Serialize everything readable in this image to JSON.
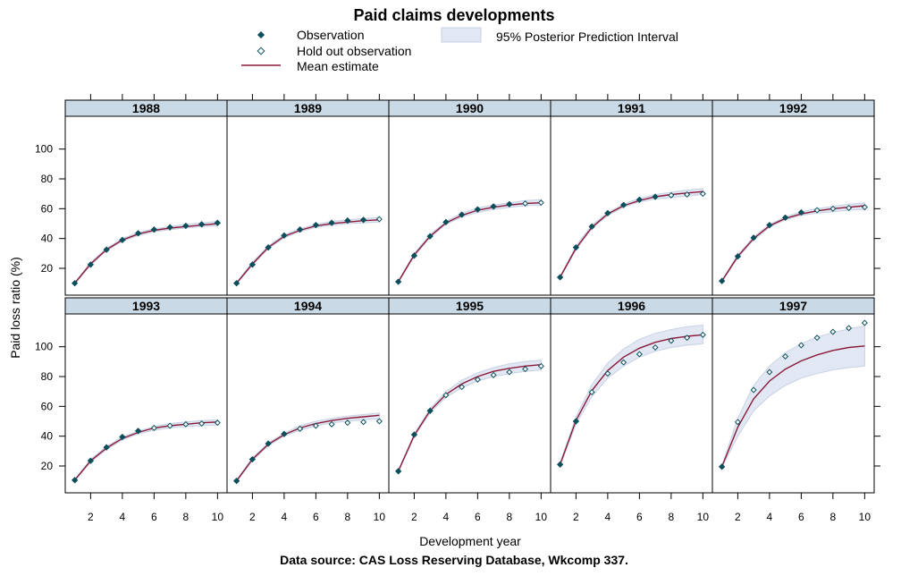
{
  "chart_data": {
    "type": "scatter",
    "title": "Paid claims developments",
    "xlabel": "Development year",
    "ylabel": "Paid loss ratio (%)",
    "source": "Data source: CAS Loss Reserving Database, Wkcomp 337.",
    "legend": {
      "placement": "top",
      "observation": "Observation",
      "holdout": "Hold out observation",
      "mean": "Mean estimate",
      "interval": "95% Posterior Prediction Interval"
    },
    "xlim": [
      0.4,
      10.6
    ],
    "ylim": [
      2,
      122
    ],
    "x_ticks": [
      2,
      4,
      6,
      8,
      10
    ],
    "y_ticks": [
      20,
      40,
      60,
      80,
      100
    ],
    "x_tick_labels": [
      "2",
      "4",
      "6",
      "8",
      "10"
    ],
    "y_tick_labels": [
      "20",
      "40",
      "60",
      "80",
      "100"
    ],
    "colors": {
      "observation": "#0b4f5c",
      "mean": "#8b1a3a",
      "interval": "#dfe6f2",
      "strip": "#c9dae6"
    },
    "x": [
      1,
      2,
      3,
      4,
      5,
      6,
      7,
      8,
      9,
      10
    ],
    "panels": [
      {
        "label": "1988",
        "n_obs": 10,
        "values": [
          10,
          22.5,
          32.5,
          39,
          43.5,
          46,
          47.5,
          48.5,
          49.5,
          50.5
        ],
        "mean": [
          10,
          23,
          32.5,
          39,
          43,
          45.5,
          47,
          48,
          49,
          50
        ],
        "lower": [
          9.5,
          22,
          32,
          38,
          42,
          44.5,
          46,
          47,
          48,
          48.5
        ],
        "upper": [
          10.5,
          24,
          33.5,
          40,
          44,
          46.5,
          48,
          49.5,
          50.5,
          51.5
        ]
      },
      {
        "label": "1989",
        "n_obs": 9,
        "values": [
          10,
          22.5,
          34,
          42,
          46,
          49,
          50.5,
          52,
          52.5,
          53
        ],
        "mean": [
          10,
          23,
          34,
          41.5,
          45.5,
          48.5,
          50,
          51,
          52,
          52.5
        ],
        "lower": [
          9.5,
          22,
          33,
          40.5,
          44.5,
          47.5,
          49,
          50,
          50.5,
          51
        ],
        "upper": [
          10.5,
          24,
          35,
          42.5,
          46.5,
          49.5,
          51.5,
          52.5,
          53.5,
          54
        ]
      },
      {
        "label": "1990",
        "n_obs": 8,
        "values": [
          11,
          28.5,
          41.5,
          51,
          56,
          59.5,
          61.5,
          63,
          63.5,
          64
        ],
        "mean": [
          11,
          29,
          41.5,
          50.5,
          55.5,
          59,
          61,
          62.5,
          63.5,
          64
        ],
        "lower": [
          10.5,
          28,
          40.5,
          49.5,
          54.5,
          57.5,
          59.5,
          61,
          62,
          62.5
        ],
        "upper": [
          11.5,
          30,
          42.5,
          51.5,
          57,
          60.5,
          62.5,
          64,
          65.5,
          66
        ]
      },
      {
        "label": "1991",
        "n_obs": 7,
        "values": [
          14,
          34,
          48,
          57,
          62.5,
          66,
          68,
          69,
          69.5,
          70
        ],
        "mean": [
          14,
          33.5,
          47.5,
          56.5,
          62,
          65.5,
          68,
          69.5,
          70.5,
          71.5
        ],
        "lower": [
          13.5,
          32.5,
          46.5,
          55.5,
          61,
          64.5,
          66.5,
          67.5,
          68.5,
          69.5
        ],
        "upper": [
          14.5,
          35,
          49,
          57.5,
          63,
          67,
          69.5,
          71,
          72.5,
          73.5
        ]
      },
      {
        "label": "1992",
        "n_obs": 6,
        "values": [
          11.5,
          28,
          40.5,
          49,
          54,
          57.5,
          59,
          60,
          60.5,
          61
        ],
        "mean": [
          11.5,
          28,
          40,
          48.5,
          53.5,
          56.5,
          58.5,
          60,
          61,
          62
        ],
        "lower": [
          11,
          27,
          39,
          47.5,
          52.5,
          55.5,
          57,
          58,
          59,
          59.5
        ],
        "upper": [
          12,
          29,
          41,
          49.5,
          54.5,
          58,
          60,
          61.5,
          63,
          64
        ]
      },
      {
        "label": "1993",
        "n_obs": 5,
        "values": [
          10.5,
          23.5,
          32.5,
          39.5,
          43.5,
          45.5,
          47,
          48,
          48.5,
          49
        ],
        "mean": [
          10.5,
          23.5,
          32,
          38.5,
          42.5,
          45.5,
          47,
          48,
          49,
          49.5
        ],
        "lower": [
          10,
          22.5,
          31,
          37.5,
          41.5,
          44,
          45.5,
          46.5,
          47,
          47.5
        ],
        "upper": [
          11,
          24.5,
          33,
          39.5,
          43.5,
          46.5,
          48.5,
          49.5,
          50.5,
          51
        ]
      },
      {
        "label": "1994",
        "n_obs": 4,
        "values": [
          10,
          24.5,
          35,
          41.5,
          45,
          47,
          48,
          49,
          49.5,
          50
        ],
        "mean": [
          10,
          24.5,
          34.5,
          41,
          45.5,
          48.5,
          50.5,
          52,
          53,
          54
        ],
        "lower": [
          9.5,
          23.5,
          33.5,
          40,
          44,
          47,
          49,
          50,
          51,
          51.5
        ],
        "upper": [
          10.5,
          25.5,
          35.5,
          42,
          47,
          50,
          52,
          53.5,
          54.5,
          55.5
        ]
      },
      {
        "label": "1995",
        "n_obs": 3,
        "values": [
          16.5,
          41,
          57,
          67.5,
          73,
          78,
          81,
          83,
          85,
          87
        ],
        "mean": [
          16.5,
          40.5,
          57,
          68,
          75,
          80,
          83.5,
          85.5,
          87,
          88
        ],
        "lower": [
          16,
          39.5,
          55.5,
          66,
          72.5,
          77,
          80,
          82,
          83.5,
          84.5
        ],
        "upper": [
          17,
          41.5,
          58.5,
          70,
          77.5,
          82.5,
          86,
          88.5,
          90,
          91
        ]
      },
      {
        "label": "1996",
        "n_obs": 2,
        "values": [
          21,
          50,
          69.5,
          82,
          89.5,
          95,
          99.5,
          104,
          106,
          108
        ],
        "mean": [
          21,
          50.5,
          70.5,
          84,
          93,
          99,
          103,
          105.5,
          107,
          108
        ],
        "lower": [
          20,
          48,
          66.5,
          79,
          87,
          93,
          97,
          99.5,
          101,
          102
        ],
        "upper": [
          22,
          53,
          74.5,
          89,
          98.5,
          105,
          109,
          111.5,
          113.5,
          114.5
        ]
      },
      {
        "label": "1997",
        "n_obs": 1,
        "values": [
          19.5,
          49.5,
          71,
          83,
          93.5,
          101,
          106,
          110,
          112.5,
          116
        ],
        "mean": [
          19.5,
          46,
          65,
          77,
          85,
          90.5,
          94.5,
          97.5,
          99.5,
          100.5
        ],
        "lower": [
          19,
          40,
          57,
          67,
          74,
          79,
          82,
          84.5,
          86,
          87
        ],
        "upper": [
          20,
          52,
          74,
          87,
          96,
          102,
          106.5,
          109.5,
          112,
          114
        ]
      }
    ]
  }
}
